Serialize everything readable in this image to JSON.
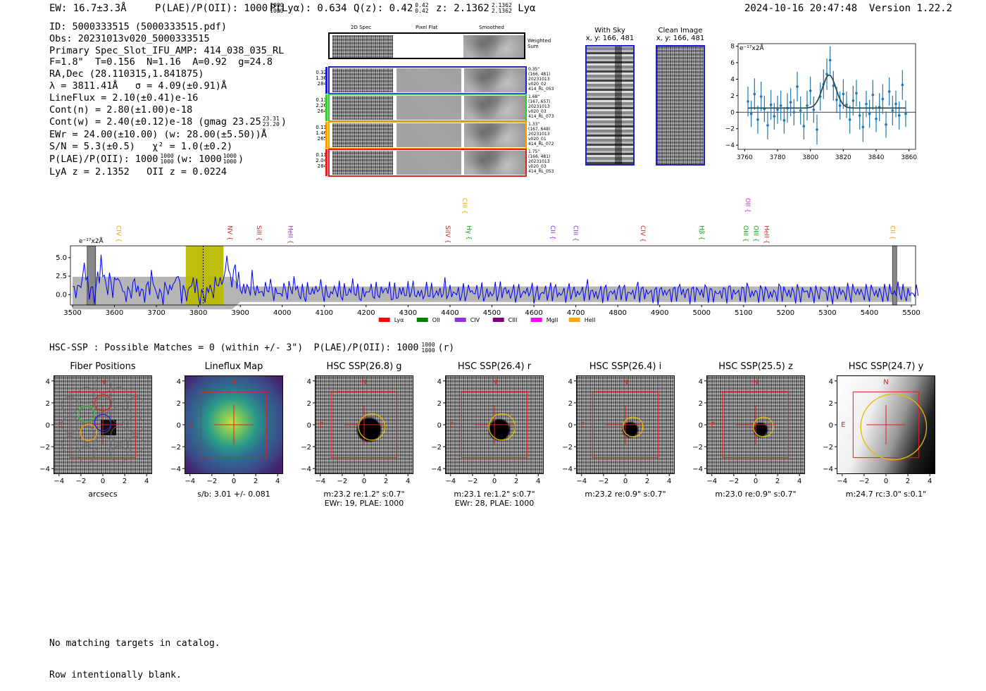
{
  "header": {
    "ew": "EW: 16.7±3.3Å",
    "plae_label": "P(LAE)/P(OII): 1000",
    "plae_sup": "1000",
    "plae_sub": "1000",
    "plya": "P(Lyα): 0.634",
    "qz_label": "Q(z): 0.42",
    "qz_sup": "0.42",
    "qz_sub": "0.42",
    "z_label": "z: 2.1362",
    "z_sup": "2.1362",
    "z_sub": "2.1362",
    "z_line": "Lyα",
    "timestamp": "2024-10-16 20:47:48",
    "version": "Version 1.22.2"
  },
  "info": {
    "lines": [
      "ID: 5000333515 (5000333515.pdf)",
      "Obs: 20231013v020_5000333515",
      "Primary Spec_Slot_IFU_AMP: 414_038_035_RL",
      "F=1.8\"  T=0.156  N=1.16  A=0.92  g=24.8",
      "RA,Dec (28.110315,1.841875)",
      "λ = 3811.41Å   σ = 4.09(±0.91)Å",
      "LineFlux = 2.10(±0.41)e-16",
      "Cont(n) = 2.80(±1.00)e-18"
    ],
    "cont_w": "Cont(w) = 2.40(±0.12)e-18 (gmag 23.25",
    "cont_w_sup": "23.31",
    "cont_w_sub": "23.20",
    "cont_w_end": ")",
    "ewr": "EWr = 24.00(±10.00) (w: 28.00(±5.50))Å",
    "sn": "S/N = 5.3(±0.5)   χ² = 1.0(±0.2)",
    "plae_a": "P(LAE)/P(OII): 1000",
    "plae_a_sup": "1000",
    "plae_a_sub": "1000",
    "plae_b": "(w: 1000",
    "plae_b_sup": "1000",
    "plae_b_sub": "1000",
    "plae_b_end": ")",
    "lya_oii": "LyA z = 2.1352   OII z = 0.0224"
  },
  "spec2d": {
    "col_labels": [
      "2D Spec",
      "Pixel Flat",
      "Smoothed"
    ],
    "weighted_label": "Weighted Sum",
    "fibers": [
      {
        "left": [
          "0.32",
          "1.36",
          "284"
        ],
        "right": [
          "0.35\"",
          "(166, 481)",
          "20231013",
          "v020_02",
          "414_RL_053"
        ],
        "color": "#1f1fd0"
      },
      {
        "left": [
          "0.13",
          "2.26",
          "264"
        ],
        "right": [
          "1.68\"",
          "(167, 657)",
          "20231013",
          "v020_03",
          "414_RL_073"
        ],
        "color": "#33cc33"
      },
      {
        "left": [
          "0.11",
          "1.46",
          "265"
        ],
        "right": [
          "1.33\"",
          "(167, 648)",
          "20231013",
          "v020_01",
          "414_RL_072"
        ],
        "color": "#f5a000"
      },
      {
        "left": [
          "0.11",
          "2.04",
          "284"
        ],
        "right": [
          "1.75\"",
          "(166, 481)",
          "20231013",
          "v020_03",
          "414_RL_053"
        ],
        "color": "#e02020"
      }
    ]
  },
  "cutouts": {
    "with_sky_title": "With Sky",
    "with_sky_xy": "x, y: 166, 481",
    "clean_title": "Clean Image",
    "clean_xy": "x, y: 166, 481"
  },
  "zoom_plot": {
    "ylabel": "e⁻¹⁷x2Å",
    "xticks": [
      "3760",
      "3780",
      "3800",
      "3820",
      "3840",
      "3860"
    ],
    "yticks": [
      "8",
      "6",
      "4",
      "2",
      "0",
      "−2",
      "−4"
    ]
  },
  "full_spectrum": {
    "ylabel": "e⁻¹⁷x2Å",
    "xticks": [
      "3500",
      "3600",
      "3700",
      "3800",
      "3900",
      "4000",
      "4100",
      "4200",
      "4300",
      "4400",
      "4500",
      "4600",
      "4700",
      "4800",
      "4900",
      "5000",
      "5100",
      "5200",
      "5300",
      "5400",
      "5500"
    ],
    "yticks": [
      "5.0",
      "2.5",
      "0.0"
    ],
    "line_marks": [
      {
        "label": "CIV",
        "color": "#f5a000",
        "high": false
      },
      {
        "label": "NV",
        "color": "#e02020",
        "high": false
      },
      {
        "label": "SiII",
        "color": "#e02020",
        "high": false
      },
      {
        "label": "HeII",
        "color": "#9030e0",
        "high": false
      },
      {
        "label": "SiIV",
        "color": "#e02020",
        "high": false
      },
      {
        "label": "CIII",
        "color": "#f5a000",
        "high": true
      },
      {
        "label": "Hγ",
        "color": "#10a010",
        "high": false
      },
      {
        "label": "CII",
        "color": "#9030e0",
        "high": false
      },
      {
        "label": "CIII",
        "color": "#9030e0",
        "high": false
      },
      {
        "label": "CIV",
        "color": "#e02020",
        "high": false
      },
      {
        "label": "Hβ",
        "color": "#10a010",
        "high": false
      },
      {
        "label": "OIII",
        "color": "#10a010",
        "high": false
      },
      {
        "label": "OII",
        "color": "#e020e0",
        "high": true
      },
      {
        "label": "OIII",
        "color": "#10a010",
        "high": false
      },
      {
        "label": "HeII",
        "color": "#e02020",
        "high": false
      },
      {
        "label": "CII",
        "color": "#f5a000",
        "high": false
      }
    ],
    "legend": [
      {
        "label": "Lyα",
        "color": "#ff0000"
      },
      {
        "label": "OII",
        "color": "#008000"
      },
      {
        "label": "CIV",
        "color": "#9030e0"
      },
      {
        "label": "CIII",
        "color": "#800080"
      },
      {
        "label": "MgII",
        "color": "#ff00ff"
      },
      {
        "label": "HeII",
        "color": "#ffa500"
      }
    ]
  },
  "hsc": {
    "summary": "HSC-SSP : Possible Matches = 0 (within +/- 3\")  P(LAE)/P(OII): 1000",
    "summary_sup": "1000",
    "summary_sub": "1000",
    "summary_end": "(r)",
    "panel_ticks_x": [
      "−4",
      "−2",
      "0",
      "2",
      "4"
    ],
    "panel_ticks_y": [
      "4",
      "2",
      "0",
      "−2",
      "−4"
    ],
    "north": "N",
    "east": "E",
    "panels": [
      {
        "title": "Fiber Positions",
        "caption": [
          "arcsecs"
        ]
      },
      {
        "title": "Lineflux Map",
        "caption": [
          "s/b: 3.01 +/- 0.081"
        ]
      },
      {
        "title": "HSC SSP(26.8) g",
        "caption": [
          "m:23.2  re:1.2\"  s:0.7\"",
          "EWr: 19, PLAE: 1000"
        ]
      },
      {
        "title": "HSC SSP(26.4) r",
        "caption": [
          "m:23.1  re:1.2\"  s:0.7\"",
          "EWr: 28, PLAE: 1000"
        ]
      },
      {
        "title": "HSC SSP(26.4) i",
        "caption": [
          "m:23.2  re:0.9\"  s:0.7\""
        ]
      },
      {
        "title": "HSC SSP(25.5) z",
        "caption": [
          "m:23.0  re:0.9\"  s:0.7\""
        ]
      },
      {
        "title": "HSC SSP(24.7) y",
        "caption": [
          "m:24.7  rc:3.0\"  s:0.1\""
        ]
      }
    ]
  },
  "footer": {
    "line1": "No matching targets in catalog.",
    "line2": "Row intentionally blank."
  },
  "chart_data": [
    {
      "type": "scatter",
      "title": "",
      "xlabel": "",
      "ylabel": "e⁻¹⁷x2Å",
      "xlim": [
        3756,
        3864
      ],
      "ylim": [
        -4.5,
        8.3
      ],
      "x": [
        3762,
        3764,
        3766,
        3768,
        3770,
        3772,
        3774,
        3776,
        3778,
        3780,
        3782,
        3784,
        3786,
        3788,
        3790,
        3792,
        3794,
        3796,
        3798,
        3800,
        3802,
        3804,
        3806,
        3808,
        3810,
        3812,
        3814,
        3816,
        3818,
        3820,
        3822,
        3824,
        3826,
        3828,
        3830,
        3832,
        3834,
        3836,
        3838,
        3840,
        3842,
        3844,
        3846,
        3848,
        3850,
        3852,
        3854,
        3856,
        3858
      ],
      "y": [
        1.3,
        -0.2,
        2.2,
        -0.9,
        1.9,
        0.4,
        -1.6,
        0.9,
        -0.5,
        0.3,
        0.8,
        -1.0,
        0.5,
        1.2,
        0.0,
        3.1,
        0.2,
        -1.7,
        0.8,
        2.6,
        0.3,
        -2.1,
        1.9,
        3.4,
        4.6,
        6.3,
        3.2,
        1.5,
        0.8,
        2.2,
        0.9,
        -0.9,
        1.4,
        2.3,
        -0.4,
        -1.8,
        1.0,
        -0.2,
        2.1,
        -0.8,
        0.6,
        1.6,
        -1.5,
        2.5,
        0.2,
        1.0,
        -0.4,
        3.3,
        -0.2
      ],
      "yerr": [
        1.8,
        1.6,
        1.9,
        1.7,
        1.8,
        1.6,
        1.7,
        1.8,
        1.6,
        1.7,
        1.8,
        1.6,
        1.8,
        1.7,
        1.6,
        1.8,
        1.7,
        1.6,
        1.8,
        1.7,
        1.6,
        1.8,
        1.7,
        1.8,
        1.9,
        1.7,
        1.8,
        1.6,
        1.7,
        1.8,
        1.6,
        1.7,
        1.8,
        1.6,
        1.7,
        1.8,
        1.6,
        1.7,
        1.8,
        1.6,
        1.7,
        1.8,
        1.6,
        1.7,
        1.8,
        1.6,
        1.7,
        1.8,
        1.6
      ],
      "fit": {
        "center": 3811.4,
        "sigma": 4.09,
        "amplitude": 4.0,
        "baseline": 0.5
      }
    },
    {
      "type": "line",
      "title": "",
      "xlabel": "",
      "ylabel": "e⁻¹⁷x2Å",
      "xlim": [
        3495,
        5510
      ],
      "ylim": [
        -1.4,
        6.6
      ],
      "highlight_band": [
        3770,
        3860
      ],
      "marker_wavelength": 3811.4,
      "masked_bands": [
        [
          3535,
          3555
        ],
        [
          5455,
          5465
        ]
      ],
      "noise_envelope": 1.1,
      "series": [
        {
          "name": "flux density",
          "color": "#0000ff",
          "x_start": 3500,
          "x_step": 20,
          "values": [
            1.0,
            4.2,
            0.5,
            5.0,
            2.1,
            3.0,
            0.2,
            1.8,
            0.4,
            2.6,
            0.0,
            1.2,
            3.1,
            0.3,
            2.2,
            -0.4,
            1.0,
            2.5,
            5.6,
            4.1,
            1.2,
            2.0,
            0.6,
            1.5,
            0.3,
            0.9,
            1.8,
            0.2,
            0.7,
            1.4,
            0.1,
            0.9,
            0.4,
            1.3,
            0.0,
            0.8,
            0.5,
            1.1,
            0.2,
            0.6,
            1.0,
            0.1,
            0.7,
            0.3,
            0.9,
            0.4,
            0.2,
            0.8,
            0.5,
            0.1,
            0.6,
            0.9,
            0.3,
            0.4,
            0.7,
            0.1,
            0.5,
            0.8,
            0.2,
            0.6,
            0.4,
            0.9,
            0.1,
            0.5,
            0.3,
            0.7,
            0.2,
            0.8,
            0.4,
            0.1,
            0.6,
            0.3,
            0.9,
            0.2,
            0.5,
            0.7,
            0.1,
            0.4,
            0.6,
            0.3,
            0.8,
            0.2,
            0.5,
            0.1,
            0.7,
            0.4,
            0.3,
            0.6,
            0.2,
            0.8,
            0.1,
            0.5,
            0.4,
            0.7,
            0.3,
            0.6,
            0.2,
            0.5,
            0.8,
            0.1,
            0.4
          ]
        }
      ]
    }
  ]
}
